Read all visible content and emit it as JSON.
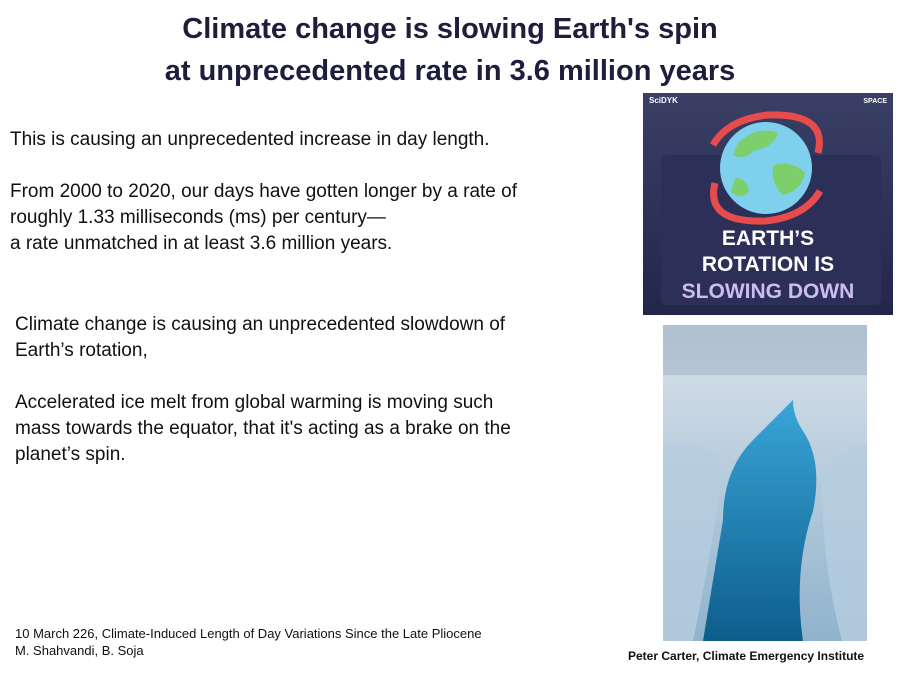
{
  "header": {
    "title_lines": [
      "Climate change is slowing Earth's spin",
      "at unprecedented rate in 3.6 million years"
    ]
  },
  "block1": {
    "paragraphs": [
      [
        "This is causing an unprecedented increase in day length."
      ],
      [
        "From 2000 to 2020, our days have gotten longer by a rate of",
        "roughly 1.33 milliseconds (ms) per century—",
        "a rate unmatched in at least 3.6 million years."
      ]
    ]
  },
  "block2": {
    "paragraphs": [
      [
        "Climate change is causing an unprecedented slowdown of",
        "Earth’s rotation,"
      ],
      [
        "Accelerated ice melt from global warming is moving such",
        "mass towards the equator, that it's acting as a brake on the",
        "planet’s spin."
      ]
    ]
  },
  "image1": {
    "brand": "SciDYK",
    "tag": "SPACE",
    "headline": [
      "EARTH’S",
      "ROTATION IS",
      "SLOWING DOWN"
    ]
  },
  "citation": [
    "10 March 226, Climate-Induced Length of Day Variations Since the Late Pliocene",
    "M.  Shahvandi, B. Soja"
  ],
  "credit": "Peter Carter, Climate Emergency Institute"
}
